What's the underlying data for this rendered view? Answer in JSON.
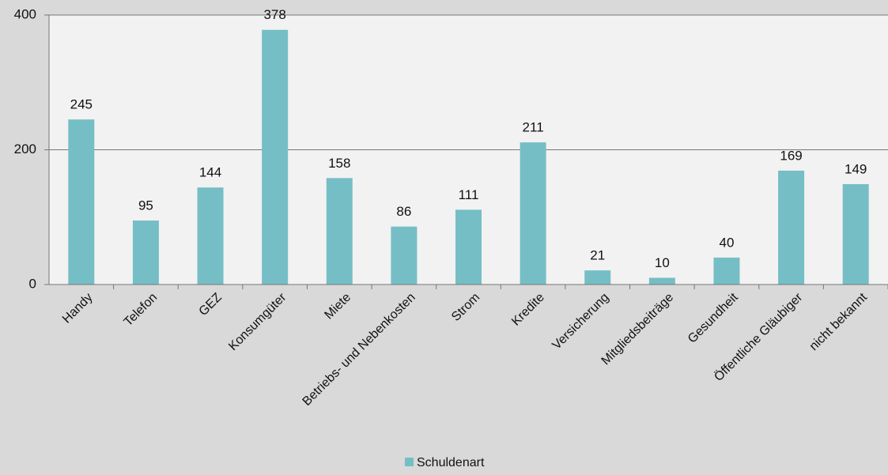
{
  "chart_data": {
    "type": "bar",
    "categories": [
      "Handy",
      "Telefon",
      "GEZ",
      "Konsumgüter",
      "Miete",
      "Betriebs- und Nebenkosten",
      "Strom",
      "Kredite",
      "Versicherung",
      "Mitgliedsbeiträge",
      "Gesundheit",
      "Öffentliche Gläubiger",
      "nicht bekannt"
    ],
    "series": [
      {
        "name": "Schuldenart",
        "color": "#76bec5",
        "values": [
          245,
          95,
          144,
          378,
          158,
          86,
          111,
          211,
          21,
          10,
          40,
          169,
          149
        ]
      }
    ],
    "ylim": [
      0,
      400
    ],
    "yticks": [
      0,
      200,
      400
    ],
    "grid": true,
    "legend": "bottom"
  }
}
